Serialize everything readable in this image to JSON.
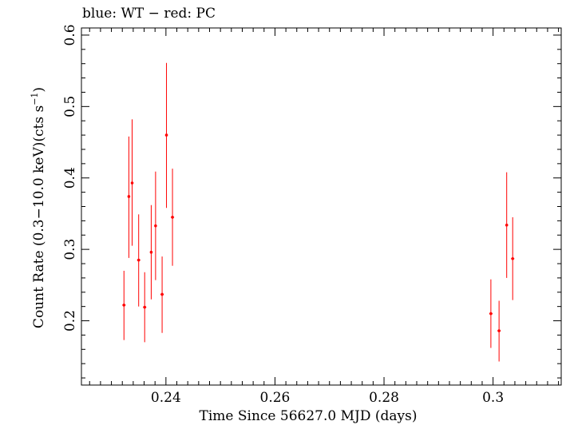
{
  "chart_data": {
    "type": "scatter",
    "title": "blue: WT − red: PC",
    "xlabel": "Time Since 56627.0 MJD (days)",
    "ylabel": "Count Rate (0.3−10.0 keV)(cts s",
    "ylabel_sup": "−1",
    "ylabel_tail": ")",
    "xlim": [
      0.2245,
      0.3125
    ],
    "ylim": [
      0.11,
      0.61
    ],
    "x_ticks": [
      0.24,
      0.26,
      0.28,
      0.3
    ],
    "x_tick_labels": [
      "0.24",
      "0.26",
      "0.28",
      "0.3"
    ],
    "y_ticks": [
      0.2,
      0.3,
      0.4,
      0.5,
      0.6
    ],
    "y_tick_labels": [
      "0.2",
      "0.3",
      "0.4",
      "0.5",
      "0.6"
    ],
    "grid": false,
    "series": [
      {
        "color": "#ff0000",
        "points": [
          {
            "x": 0.2323,
            "y": 0.222,
            "xerr": 0.0003,
            "ylo": 0.173,
            "yhi": 0.27
          },
          {
            "x": 0.2332,
            "y": 0.374,
            "xerr": 0.0002,
            "ylo": 0.288,
            "yhi": 0.458
          },
          {
            "x": 0.2338,
            "y": 0.393,
            "xerr": 0.0002,
            "ylo": 0.305,
            "yhi": 0.482
          },
          {
            "x": 0.235,
            "y": 0.285,
            "xerr": 0.0003,
            "ylo": 0.22,
            "yhi": 0.349
          },
          {
            "x": 0.2361,
            "y": 0.219,
            "xerr": 0.0003,
            "ylo": 0.17,
            "yhi": 0.268
          },
          {
            "x": 0.2373,
            "y": 0.296,
            "xerr": 0.0002,
            "ylo": 0.23,
            "yhi": 0.362
          },
          {
            "x": 0.2381,
            "y": 0.333,
            "xerr": 0.0002,
            "ylo": 0.257,
            "yhi": 0.409
          },
          {
            "x": 0.2393,
            "y": 0.237,
            "xerr": 0.0003,
            "ylo": 0.183,
            "yhi": 0.29
          },
          {
            "x": 0.2401,
            "y": 0.46,
            "xerr": 0.0002,
            "ylo": 0.358,
            "yhi": 0.561
          },
          {
            "x": 0.2412,
            "y": 0.345,
            "xerr": 0.0003,
            "ylo": 0.277,
            "yhi": 0.413
          },
          {
            "x": 0.2996,
            "y": 0.21,
            "xerr": 0.0003,
            "ylo": 0.162,
            "yhi": 0.258
          },
          {
            "x": 0.3011,
            "y": 0.186,
            "xerr": 0.0003,
            "ylo": 0.143,
            "yhi": 0.228
          },
          {
            "x": 0.3025,
            "y": 0.334,
            "xerr": 0.0002,
            "ylo": 0.26,
            "yhi": 0.408
          },
          {
            "x": 0.3036,
            "y": 0.287,
            "xerr": 0.0003,
            "ylo": 0.229,
            "yhi": 0.345
          }
        ]
      }
    ]
  }
}
